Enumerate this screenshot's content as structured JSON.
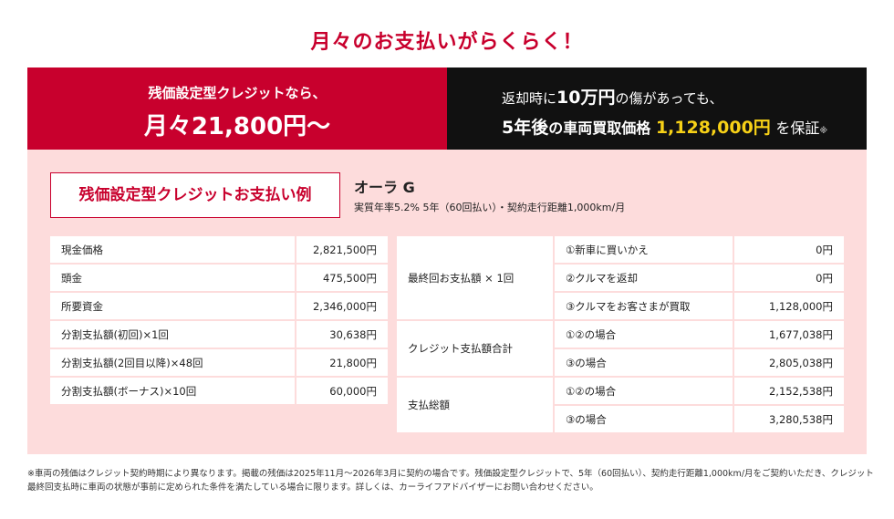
{
  "headline": "月々のお支払いがらくらく！",
  "banner_left": {
    "line1": "残価設定型クレジットなら、",
    "line2": "月々21,800円〜"
  },
  "banner_right": {
    "l1a": "返却時に",
    "l1b": "10万円",
    "l1c": "の傷があっても、",
    "l2a": "5年後",
    "l2b": "の車両買取価格",
    "l2c": "1,128,000円",
    "l2d": "を保証",
    "l2e": "※",
    "accent": "#f7d117"
  },
  "example_title": "残価設定型クレジットお支払い例",
  "model": "オーラ G",
  "terms": "実質年率5.2% 5年（60回払い）・契約走行距離1,000km/月",
  "left_table": [
    {
      "label": "現金価格",
      "value": "2,821,500円"
    },
    {
      "label": "頭金",
      "value": "475,500円"
    },
    {
      "label": "所要資金",
      "value": "2,346,000円"
    },
    {
      "label": "分割支払額(初回)×1回",
      "value": "30,638円"
    },
    {
      "label": "分割支払額(2回目以降)×48回",
      "value": "21,800円"
    },
    {
      "label": "分割支払額(ボーナス)×10回",
      "value": "60,000円"
    }
  ],
  "right_table": [
    {
      "group": "最終回お支払額 × 1回",
      "rows": [
        {
          "label": "①新車に買いかえ",
          "value": "0円"
        },
        {
          "label": "②クルマを返却",
          "value": "0円"
        },
        {
          "label": "③クルマをお客さまが買取",
          "value": "1,128,000円"
        }
      ]
    },
    {
      "group": "クレジット支払額合計",
      "rows": [
        {
          "label": "①②の場合",
          "value": "1,677,038円"
        },
        {
          "label": "③の場合",
          "value": "2,805,038円"
        }
      ]
    },
    {
      "group": "支払総額",
      "rows": [
        {
          "label": "①②の場合",
          "value": "2,152,538円"
        },
        {
          "label": "③の場合",
          "value": "3,280,538円"
        }
      ]
    }
  ],
  "footnote": "※車両の残価はクレジット契約時期により異なります。掲載の残価は2025年11月〜2026年3月に契約の場合です。残価設定型クレジットで、5年（60回払い）、契約走行距離1,000km/月をご契約いただき、クレジット最終回支払時に車両の状態が事前に定められた条件を満たしている場合に限ります。詳しくは、カーライフアドバイザーにお問い合わせください。",
  "colors": {
    "brand_red": "#c8002d",
    "panel_pink": "#fddcdc",
    "dark": "#111111"
  }
}
